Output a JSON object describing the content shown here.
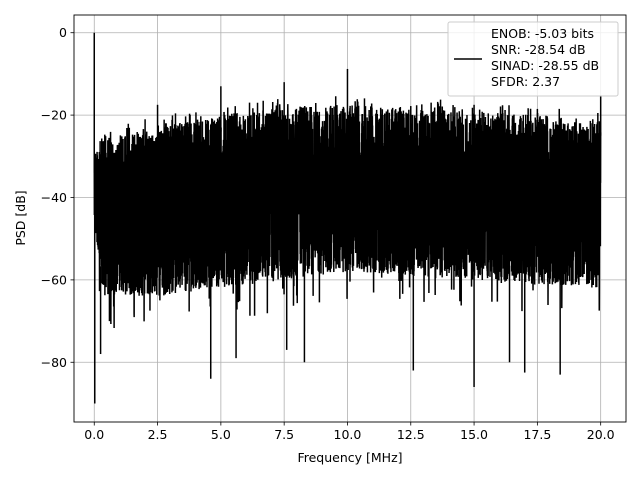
{
  "chart_data": {
    "type": "line",
    "title": "",
    "xlabel": "Frequency [MHz]",
    "ylabel": "PSD [dB]",
    "xlim": [
      -0.8,
      21.0
    ],
    "ylim": [
      -94.5,
      4.3
    ],
    "x_ticks": [
      0.0,
      2.5,
      5.0,
      7.5,
      10.0,
      12.5,
      15.0,
      17.5,
      20.0
    ],
    "x_tick_labels": [
      "0.0",
      "2.5",
      "5.0",
      "7.5",
      "10.0",
      "12.5",
      "15.0",
      "17.5",
      "20.0"
    ],
    "y_ticks": [
      0,
      -20,
      -40,
      -60,
      -80
    ],
    "y_tick_labels": [
      "0",
      "−20",
      "−40",
      "−60",
      "−80"
    ],
    "grid": true,
    "legend_position": "top-right",
    "series": [
      {
        "name": "",
        "color": "#000000",
        "x_range": [
          0.0,
          20.0
        ],
        "upper_envelope": [
          [
            0.0,
            -30
          ],
          [
            0.3,
            -25
          ],
          [
            1.0,
            -25
          ],
          [
            2.5,
            -22.5
          ],
          [
            5.0,
            -20
          ],
          [
            7.5,
            -18
          ],
          [
            10.0,
            -17.5
          ],
          [
            12.5,
            -18.5
          ],
          [
            15.0,
            -19
          ],
          [
            17.5,
            -20
          ],
          [
            20.0,
            -21
          ]
        ],
        "lower_envelope": [
          [
            0.0,
            -44
          ],
          [
            0.3,
            -64
          ],
          [
            2.5,
            -64
          ],
          [
            5.0,
            -62
          ],
          [
            7.5,
            -60
          ],
          [
            10.0,
            -58
          ],
          [
            12.5,
            -59
          ],
          [
            15.0,
            -60
          ],
          [
            17.5,
            -61
          ],
          [
            20.0,
            -62
          ]
        ],
        "peaks": [
          [
            0.0,
            0
          ],
          [
            2.5,
            -17.5
          ],
          [
            5.0,
            -13
          ],
          [
            7.5,
            -12
          ],
          [
            10.0,
            -8.8
          ],
          [
            12.5,
            -17.8
          ],
          [
            15.0,
            -17.5
          ],
          [
            17.5,
            -18.5
          ],
          [
            20.0,
            -15.2
          ]
        ],
        "dips": [
          [
            0.02,
            -90
          ],
          [
            0.25,
            -78
          ],
          [
            4.6,
            -84
          ],
          [
            5.6,
            -79
          ],
          [
            8.3,
            -80
          ],
          [
            12.6,
            -82
          ],
          [
            15.0,
            -86
          ],
          [
            17.0,
            -82.5
          ],
          [
            18.4,
            -83
          ],
          [
            16.4,
            -80
          ],
          [
            7.6,
            -77
          ]
        ]
      }
    ],
    "legend": {
      "lines": [
        "ENOB: -5.03 bits",
        "SNR: -28.54 dB",
        "SINAD: -28.55 dB",
        "SFDR: 2.37"
      ]
    }
  }
}
